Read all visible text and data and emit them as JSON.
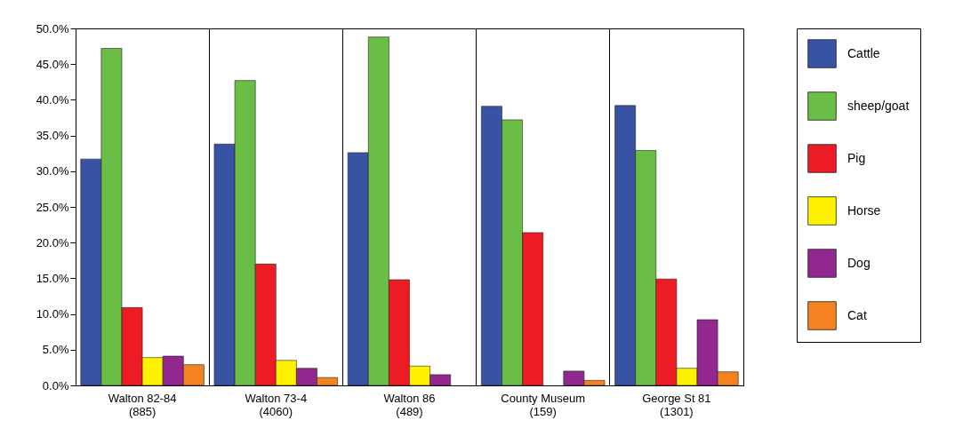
{
  "chart_data": {
    "type": "bar",
    "categories": [
      "Walton 82-84 (885)",
      "Walton 73-4 (4060)",
      "Walton 86 (489)",
      "County Museum (159)",
      "George St 81 (1301)"
    ],
    "series": [
      {
        "name": "Cattle",
        "color": "#3953a4",
        "values": [
          31.7,
          33.8,
          32.6,
          39.1,
          39.2
        ]
      },
      {
        "name": "sheep/goat",
        "color": "#6abd45",
        "values": [
          47.2,
          42.7,
          48.8,
          37.2,
          32.9
        ]
      },
      {
        "name": "Pig",
        "color": "#ed1c24",
        "values": [
          10.9,
          17.0,
          14.8,
          21.4,
          14.9
        ]
      },
      {
        "name": "Horse",
        "color": "#fff200",
        "values": [
          3.9,
          3.5,
          2.7,
          0,
          2.4
        ]
      },
      {
        "name": "Dog",
        "color": "#92278f",
        "values": [
          4.1,
          2.4,
          1.5,
          2.0,
          9.2
        ]
      },
      {
        "name": "Cat",
        "color": "#f58220",
        "values": [
          2.9,
          1.1,
          0,
          0.7,
          1.9
        ]
      }
    ],
    "ylim": [
      0,
      50
    ],
    "yticks": [
      {
        "value": 0,
        "label": "0.0%"
      },
      {
        "value": 5,
        "label": "5.0%"
      },
      {
        "value": 10,
        "label": "10.0%"
      },
      {
        "value": 15,
        "label": "15.0%"
      },
      {
        "value": 20,
        "label": "20.0%"
      },
      {
        "value": 25,
        "label": "25.0%"
      },
      {
        "value": 30,
        "label": "30.0%"
      },
      {
        "value": 35,
        "label": "35.0%"
      },
      {
        "value": 40,
        "label": "40.0%"
      },
      {
        "value": 45,
        "label": "45.0%"
      },
      {
        "value": 50,
        "label": "50.0%"
      }
    ],
    "grid": "x",
    "legend": "right"
  }
}
